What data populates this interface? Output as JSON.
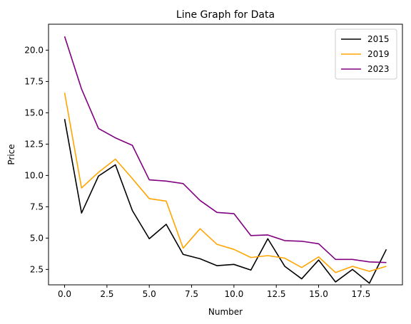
{
  "chart_data": {
    "type": "line",
    "title": "Line Graph for Data",
    "xlabel": "Number",
    "ylabel": "Price",
    "xlim": [
      -0.95,
      19.95
    ],
    "ylim": [
      1.27,
      22.07
    ],
    "grid": false,
    "legend_position": "top-right",
    "x": [
      0,
      1,
      2,
      3,
      4,
      5,
      6,
      7,
      8,
      9,
      10,
      11,
      12,
      13,
      14,
      15,
      16,
      17,
      18,
      19
    ],
    "x_ticks": [
      0.0,
      2.5,
      5.0,
      7.5,
      10.0,
      12.5,
      15.0,
      17.5
    ],
    "x_tick_labels": [
      "0.0",
      "2.5",
      "5.0",
      "7.5",
      "10.0",
      "12.5",
      "15.0",
      "17.5"
    ],
    "y_ticks": [
      2.5,
      5.0,
      7.5,
      10.0,
      12.5,
      15.0,
      17.5,
      20.0
    ],
    "y_tick_labels": [
      "2.5",
      "5.0",
      "7.5",
      "10.0",
      "12.5",
      "15.0",
      "17.5",
      "20.0"
    ],
    "series": [
      {
        "name": "2015",
        "color": "#000000",
        "values": [
          14.5,
          7.0,
          9.95,
          10.85,
          7.2,
          4.95,
          6.1,
          3.7,
          3.35,
          2.8,
          2.9,
          2.45,
          4.95,
          2.75,
          1.75,
          3.25,
          1.5,
          2.5,
          1.4,
          4.1
        ]
      },
      {
        "name": "2019",
        "color": "#ffa500",
        "values": [
          16.6,
          9.0,
          10.25,
          11.3,
          9.75,
          8.15,
          7.95,
          4.2,
          5.75,
          4.5,
          4.1,
          3.45,
          3.6,
          3.4,
          2.65,
          3.5,
          2.25,
          2.75,
          2.35,
          2.75
        ]
      },
      {
        "name": "2023",
        "color": "#800080",
        "values": [
          21.1,
          16.9,
          13.75,
          13.0,
          12.4,
          9.65,
          9.55,
          9.35,
          8.0,
          7.05,
          6.95,
          5.2,
          5.25,
          4.8,
          4.75,
          4.55,
          3.3,
          3.3,
          3.1,
          3.05
        ]
      }
    ]
  }
}
